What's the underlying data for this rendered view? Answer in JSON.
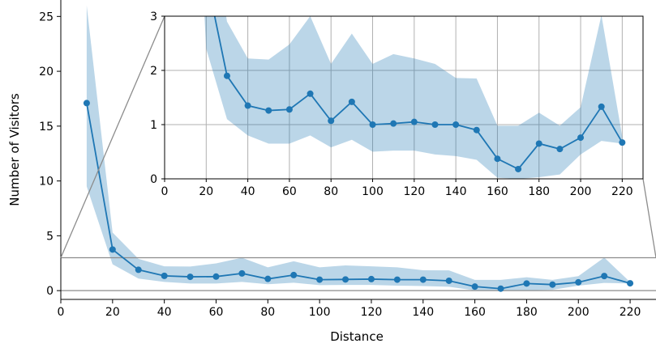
{
  "chart_data": {
    "type": "line",
    "xlabel": "Distance",
    "ylabel": "Number of Visitors",
    "grid": false,
    "xlim": [
      0,
      230
    ],
    "ylim": [
      -0.8,
      26.5
    ],
    "x_ticks": [
      0,
      20,
      40,
      60,
      80,
      100,
      120,
      140,
      160,
      180,
      200,
      220
    ],
    "y_ticks": [
      0,
      5,
      10,
      15,
      20,
      25
    ],
    "line_color": "#1f77b4",
    "band_color": "#1f77b4",
    "series": [
      {
        "x": [
          10,
          20,
          30,
          40,
          50,
          60,
          70,
          80,
          90,
          100,
          110,
          120,
          130,
          140,
          150,
          160,
          170,
          180,
          190,
          200,
          210,
          220
        ],
        "values": [
          17.1,
          3.75,
          1.9,
          1.35,
          1.26,
          1.28,
          1.57,
          1.07,
          1.42,
          1.0,
          1.02,
          1.05,
          1.0,
          1.0,
          0.9,
          0.37,
          0.18,
          0.65,
          0.55,
          0.76,
          1.33,
          0.67
        ],
        "lower": [
          9.5,
          2.4,
          1.1,
          0.8,
          0.65,
          0.65,
          0.8,
          0.58,
          0.72,
          0.5,
          0.52,
          0.52,
          0.45,
          0.42,
          0.35,
          0.02,
          0.0,
          0.03,
          0.08,
          0.45,
          0.7,
          0.65
        ],
        "upper": [
          26.0,
          5.3,
          2.9,
          2.22,
          2.2,
          2.48,
          3.0,
          2.12,
          2.68,
          2.12,
          2.3,
          2.22,
          2.12,
          1.86,
          1.85,
          0.98,
          0.98,
          1.22,
          0.98,
          1.32,
          3.02,
          0.78
        ]
      }
    ],
    "reference_lines": [
      0,
      3
    ],
    "inset": {
      "type": "line",
      "xlim": [
        0,
        230
      ],
      "ylim": [
        0,
        3
      ],
      "grid": true,
      "x_ticks": [
        0,
        20,
        40,
        60,
        80,
        100,
        120,
        140,
        160,
        180,
        200,
        220
      ],
      "y_ticks": [
        0,
        1,
        2,
        3
      ]
    }
  }
}
